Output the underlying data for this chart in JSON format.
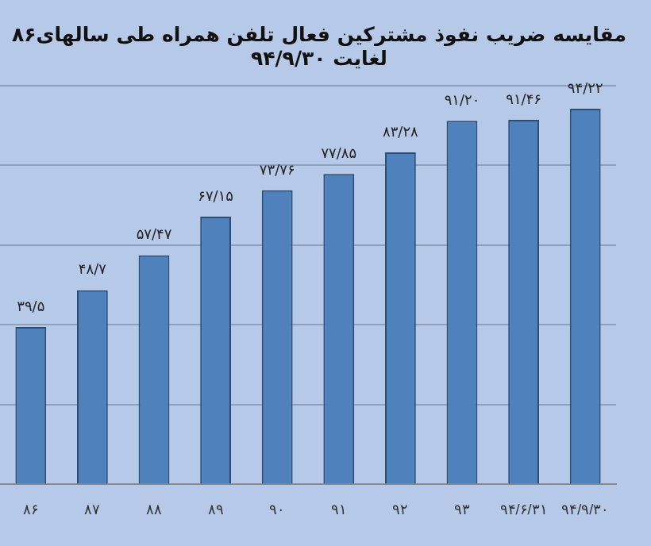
{
  "chart_data": {
    "type": "bar",
    "title": "مقایسه ضریب نفوذ مشترکین فعال تلفن همراه طی سالهای۸۶ لغایت ۹۴/۹/۳۰",
    "categories": [
      "۸۶",
      "۸۷",
      "۸۸",
      "۸۹",
      "۹۰",
      "۹۱",
      "۹۲",
      "۹۳",
      "۹۴/۶/۳۱",
      "۹۴/۹/۳۰"
    ],
    "values": [
      39.5,
      48.7,
      57.47,
      67.15,
      73.76,
      77.85,
      83.28,
      91.2,
      91.46,
      94.22
    ],
    "value_labels": [
      "۳۹/۵",
      "۴۸/۷",
      "۵۷/۴۷",
      "۶۷/۱۵",
      "۷۳/۷۶",
      "۷۷/۸۵",
      "۸۳/۲۸",
      "۹۱/۲۰",
      "۹۱/۴۶",
      "۹۴/۲۲"
    ],
    "color": "#4f81bd",
    "ylim": [
      0,
      100
    ],
    "yticks": [
      {
        "value": 0,
        "label": null
      },
      {
        "value": 20,
        "label": null
      },
      {
        "value": 40,
        "label": null
      },
      {
        "value": 60,
        "label": null
      },
      {
        "value": 80,
        "label": null
      },
      {
        "value": 100,
        "label": null
      }
    ],
    "grid": "y",
    "tick_labels": "x",
    "legend": false
  }
}
